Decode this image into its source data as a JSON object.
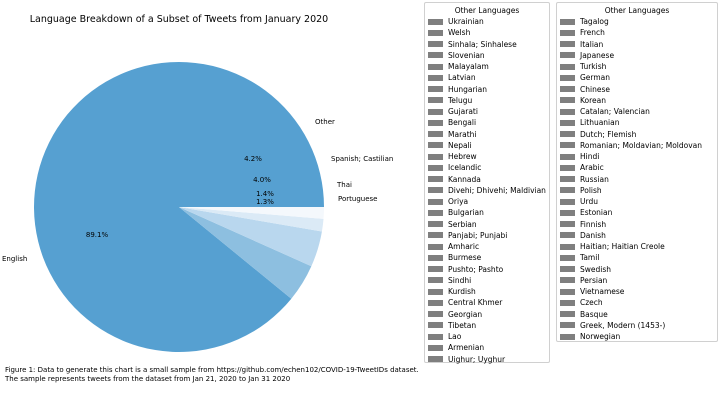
{
  "chart_data": {
    "type": "pie",
    "title": "Language Breakdown of a Subset of Tweets from January 2020",
    "slices": [
      {
        "label": "English",
        "value": 89.1,
        "pct_label": "89.1%",
        "color": "#56a0d1"
      },
      {
        "label": "Other",
        "value": 4.2,
        "pct_label": "4.2%",
        "color": "#8dbfe0"
      },
      {
        "label": "Spanish; Castilian",
        "value": 4.0,
        "pct_label": "4.0%",
        "color": "#b9d7ee"
      },
      {
        "label": "Thai",
        "value": 1.4,
        "pct_label": "1.4%",
        "color": "#dbeaf6"
      },
      {
        "label": "Portuguese",
        "value": 1.3,
        "pct_label": "1.3%",
        "color": "#f4f8fc"
      }
    ],
    "legends": [
      {
        "title": "Other Languages",
        "entries": [
          "Ukrainian",
          "Welsh",
          "Sinhala; Sinhalese",
          "Slovenian",
          "Malayalam",
          "Latvian",
          "Hungarian",
          "Telugu",
          "Gujarati",
          "Bengali",
          "Marathi",
          "Nepali",
          "Hebrew",
          "Icelandic",
          "Kannada",
          "Divehi; Dhivehi; Maldivian",
          "Oriya",
          "Bulgarian",
          "Serbian",
          "Panjabi; Punjabi",
          "Amharic",
          "Burmese",
          "Pushto; Pashto",
          "Sindhi",
          "Kurdish",
          "Central Khmer",
          "Georgian",
          "Tibetan",
          "Lao",
          "Armenian",
          "Uighur; Uyghur"
        ]
      },
      {
        "title": "Other Languages",
        "entries": [
          "Tagalog",
          "French",
          "Italian",
          "Japanese",
          "Turkish",
          "German",
          "Chinese",
          "Korean",
          "Catalan; Valencian",
          "Lithuanian",
          "Dutch; Flemish",
          "Romanian; Moldavian; Moldovan",
          "Hindi",
          "Arabic",
          "Russian",
          "Polish",
          "Urdu",
          "Estonian",
          "Finnish",
          "Danish",
          "Haitian; Haitian Creole",
          "Tamil",
          "Swedish",
          "Persian",
          "Vietnamese",
          "Czech",
          "Basque",
          "Greek, Modern (1453-)",
          "Norwegian"
        ]
      }
    ],
    "legend_swatch_color": "#7f7f7f"
  },
  "caption": {
    "line1": "Figure 1: Data to generate this chart is a small sample from https://github.com/echen102/COVID-19-TweetIDs dataset.",
    "line2": "The sample represents tweets from the dataset from Jan 21, 2020 to Jan 31 2020"
  }
}
